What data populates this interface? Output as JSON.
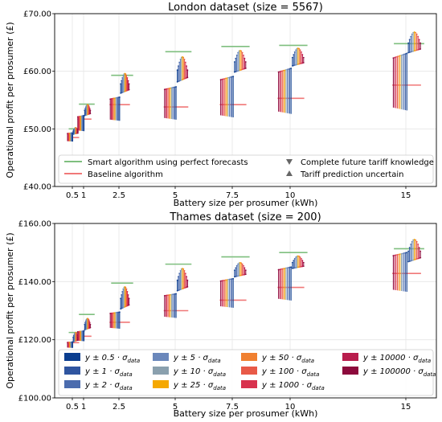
{
  "chart_data": [
    {
      "type": "range",
      "title": "London dataset (size = 5567)",
      "xlabel": "Battery size per prosumer (kWh)",
      "ylabel": "Operational profit per prosumer (£)",
      "x_ticks": [
        "0.5",
        "1",
        "2.5",
        "5",
        "7.5",
        "10",
        "15"
      ],
      "y_ticks": [
        "£40.00",
        "£50.00",
        "£60.00",
        "£70.00"
      ],
      "ylim": [
        40,
        70
      ],
      "grid": true,
      "legend_position": "bottom",
      "legend": [
        {
          "label": "Smart algorithm using perfect forecasts",
          "kind": "line",
          "color": "#7fbf7f"
        },
        {
          "label": "Baseline algorithm",
          "kind": "line",
          "color": "#f07878"
        },
        {
          "label": "Complete future tariff knowledge",
          "kind": "triangle-down",
          "color": "#666666"
        },
        {
          "label": "Tariff prediction uncertain",
          "kind": "triangle-up",
          "color": "#666666"
        }
      ],
      "battery_sizes": [
        0.5,
        1,
        2.5,
        5,
        7.5,
        10,
        15
      ],
      "smart": [
        50.0,
        54.3,
        59.3,
        63.4,
        64.3,
        64.5,
        64.8
      ],
      "baseline": [
        48.5,
        51.7,
        54.2,
        53.8,
        54.2,
        55.3,
        57.6
      ],
      "range_low": [
        47.8,
        49.6,
        51.4,
        51.6,
        52.0,
        52.6,
        53.2
      ],
      "range_high": [
        49.3,
        52.3,
        55.5,
        57.3,
        59.1,
        60.5,
        63.1
      ],
      "ucl_low": [
        48.9,
        52.0,
        55.6,
        57.4,
        59.2,
        60.4,
        62.6
      ],
      "ucl_high": [
        50.2,
        54.2,
        59.6,
        62.5,
        63.6,
        64.0,
        66.8
      ]
    },
    {
      "type": "range",
      "title": "Thames dataset (size = 200)",
      "xlabel": "Battery size per prosumer (kWh)",
      "ylabel": "Operational profit per prosumer (£)",
      "x_ticks": [
        "0.5",
        "1",
        "2.5",
        "5",
        "7.5",
        "10",
        "15"
      ],
      "y_ticks": [
        "£100.00",
        "£120.00",
        "£140.00",
        "£160.00"
      ],
      "ylim": [
        100,
        160
      ],
      "grid": true,
      "legend_position": "bottom",
      "legend": [
        {
          "label": "y ± 0.5 · σ",
          "sub": "data",
          "color": "#0a3d8f"
        },
        {
          "label": "y ± 1 · σ",
          "sub": "data",
          "color": "#2f55a0"
        },
        {
          "label": "y ± 2 · σ",
          "sub": "data",
          "color": "#4b6cae"
        },
        {
          "label": "y ± 5 · σ",
          "sub": "data",
          "color": "#6a87bb"
        },
        {
          "label": "y ± 10 · σ",
          "sub": "data",
          "color": "#8aa0ae"
        },
        {
          "label": "y ± 25 · σ",
          "sub": "data",
          "color": "#f5a800"
        },
        {
          "label": "y ± 50 · σ",
          "sub": "data",
          "color": "#f08030"
        },
        {
          "label": "y ± 100 · σ",
          "sub": "data",
          "color": "#e85a48"
        },
        {
          "label": "y ± 1000 · σ",
          "sub": "data",
          "color": "#d8324e"
        },
        {
          "label": "y ± 10000 · σ",
          "sub": "data",
          "color": "#b81c4c"
        },
        {
          "label": "y ± 100000 · σ",
          "sub": "data",
          "color": "#8c0a3c"
        }
      ],
      "battery_sizes": [
        0.5,
        1,
        2.5,
        5,
        7.5,
        10,
        15
      ],
      "smart": [
        122.5,
        128.7,
        139.5,
        146.0,
        148.5,
        150.0,
        151.3
      ],
      "baseline": [
        119.0,
        121.2,
        126.0,
        130.0,
        133.6,
        138.0,
        142.8
      ],
      "range_low": [
        117.2,
        119.5,
        123.8,
        127.5,
        131.0,
        133.5,
        136.5
      ],
      "range_high": [
        119.2,
        123.0,
        129.5,
        135.8,
        141.0,
        145.0,
        150.0
      ],
      "ucl_low": [
        118.8,
        122.8,
        129.3,
        135.5,
        140.8,
        143.8,
        145.5
      ],
      "ucl_high": [
        122.5,
        127.3,
        138.2,
        144.5,
        146.5,
        148.8,
        154.5
      ]
    }
  ]
}
